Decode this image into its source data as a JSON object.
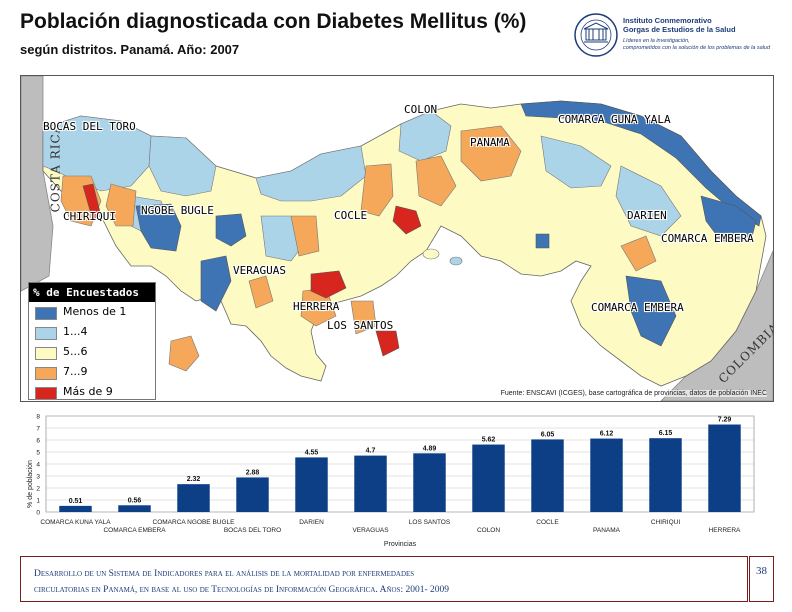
{
  "header": {
    "title": "Población diagnosticada con Diabetes Mellitus (%)",
    "subtitle": "según distritos. Panamá. Año: 2007"
  },
  "logo": {
    "name_line1": "Instituto Conmemorativo",
    "name_line2": "Gorgas de Estudios de la Salud",
    "tagline_line1": "Líderes en la investigación,",
    "tagline_line2": "comprometidos con la solución de los problemas de la salud"
  },
  "map": {
    "neighbors": {
      "west": "COSTA RICA",
      "east": "COLOMBIA"
    },
    "labels": [
      "BOCAS DEL TORO",
      "COLON",
      "COMARCA GUNA YALA",
      "PANAMA",
      "CHIRIQUI",
      "NGOBE BUGLE",
      "COCLE",
      "DARIEN",
      "COMARCA EMBERA",
      "VERAGUAS",
      "HERRERA",
      "LOS SANTOS",
      "COMARCA EMBERA"
    ],
    "legend": {
      "title": "% de Encuestados",
      "items": [
        {
          "label": "Menos de 1",
          "color": "#3f74b4"
        },
        {
          "label": "1...4",
          "color": "#acd4e9"
        },
        {
          "label": "5...6",
          "color": "#fdfbc3"
        },
        {
          "label": "7...9",
          "color": "#f5a85a"
        },
        {
          "label": "Más de 9",
          "color": "#d7261e"
        }
      ]
    },
    "source": "Fuente: ENSCAVI (ICGES), base cartográfica de provincias, datos de población INEC"
  },
  "chart_data": {
    "type": "bar",
    "categories": [
      "COMARCA KUNA YALA",
      "COMARCA EMBERA",
      "COMARCA NGOBE BUGLE",
      "BOCAS DEL TORO",
      "DARIEN",
      "VERAGUAS",
      "LOS SANTOS",
      "COLON",
      "COCLE",
      "PANAMA",
      "CHIRIQUI",
      "HERRERA"
    ],
    "values": [
      0.51,
      0.56,
      2.32,
      2.88,
      4.55,
      4.7,
      4.89,
      5.62,
      6.05,
      6.12,
      6.15,
      7.29
    ],
    "value_labels": [
      "0.51",
      "0.56",
      "2.32",
      "2.88",
      "4.55",
      "4.7",
      "4.89",
      "5.62",
      "6.05",
      "6.12",
      "6.15",
      "7.29"
    ],
    "ylabel": "% de población",
    "xlabel": "Provincias",
    "ylim": [
      0,
      8
    ],
    "yticks": [
      "0",
      "1",
      "2",
      "3",
      "4",
      "5",
      "6",
      "7",
      "8"
    ],
    "grid": true,
    "bar_color": "#0d3f86"
  },
  "footer": {
    "line1": "Desarrollo de un Sistema de Indicadores para el análisis de la mortalidad por enfermedades",
    "line2": "circulatorias en Panamá, en base al uso de Tecnologías de Información Geográfica. Años: 2001- 2009",
    "page": "38"
  }
}
